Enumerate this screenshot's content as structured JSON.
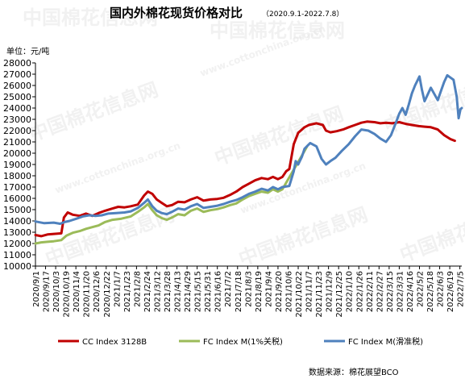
{
  "watermark": {
    "brand": "中国棉花信息网",
    "url": "www.cottonchina.org.cn"
  },
  "chart_data": {
    "type": "line",
    "title": "国内外棉花现货价格对比",
    "subtitle": "（2020.9.1-2022.7.8）",
    "ylabel": "单位：元/吨",
    "ylim": [
      10000,
      28000
    ],
    "yticks": [
      10000,
      11000,
      12000,
      13000,
      14000,
      15000,
      16000,
      17000,
      18000,
      19000,
      20000,
      21000,
      22000,
      23000,
      24000,
      25000,
      26000,
      27000,
      28000
    ],
    "xlim": [
      "2020-09-01",
      "2022-07-08"
    ],
    "categories": [
      "2020/9/1",
      "2020/9/17",
      "2020/10/3",
      "2020/10/19",
      "2020/11/4",
      "2020/11/20",
      "2020/12/6",
      "2020/12/22",
      "2021/1/7",
      "2021/1/23",
      "2021/2/8",
      "2021/2/24",
      "2021/3/12",
      "2021/3/28",
      "2021/4/13",
      "2021/4/29",
      "2021/5/15",
      "2021/5/31",
      "2021/6/16",
      "2021/7/2",
      "2021/7/18",
      "2021/8/3",
      "2021/8/19",
      "2021/9/4",
      "2021/9/20",
      "2021/10/6",
      "2021/10/22",
      "2021/11/7",
      "2021/11/23",
      "2021/12/9",
      "2021/12/25",
      "2022/1/10",
      "2022/1/26",
      "2022/2/11",
      "2022/2/27",
      "2022/3/15",
      "2022/3/31",
      "2022/4/16",
      "2022/5/2",
      "2022/5/18",
      "2022/6/3",
      "2022/6/19",
      "2022/7/5"
    ],
    "grid": false,
    "legend_position": "bottom",
    "source": "数据来源：棉花展望BCO",
    "colors": {
      "cc": "#c00000",
      "fc1": "#9bbb59",
      "fcs": "#4f81bd",
      "axis": "#000000"
    },
    "series": [
      {
        "name": "CC Index 3128B",
        "color": "#c00000",
        "points": [
          [
            "2020-09-01",
            12750
          ],
          [
            "2020-09-10",
            12650
          ],
          [
            "2020-09-20",
            12800
          ],
          [
            "2020-09-30",
            12850
          ],
          [
            "2020-10-12",
            12900
          ],
          [
            "2020-10-16",
            14300
          ],
          [
            "2020-10-22",
            14750
          ],
          [
            "2020-10-30",
            14550
          ],
          [
            "2020-11-10",
            14450
          ],
          [
            "2020-11-20",
            14650
          ],
          [
            "2020-11-30",
            14450
          ],
          [
            "2020-12-10",
            14700
          ],
          [
            "2020-12-20",
            14900
          ],
          [
            "2021-01-01",
            15100
          ],
          [
            "2021-01-10",
            15250
          ],
          [
            "2021-01-20",
            15200
          ],
          [
            "2021-01-30",
            15300
          ],
          [
            "2021-02-10",
            15450
          ],
          [
            "2021-02-20",
            16250
          ],
          [
            "2021-02-26",
            16600
          ],
          [
            "2021-03-05",
            16400
          ],
          [
            "2021-03-12",
            15900
          ],
          [
            "2021-03-20",
            15600
          ],
          [
            "2021-03-28",
            15300
          ],
          [
            "2021-04-05",
            15400
          ],
          [
            "2021-04-15",
            15700
          ],
          [
            "2021-04-25",
            15650
          ],
          [
            "2021-05-05",
            15900
          ],
          [
            "2021-05-15",
            16100
          ],
          [
            "2021-05-25",
            15800
          ],
          [
            "2021-06-05",
            15900
          ],
          [
            "2021-06-16",
            15950
          ],
          [
            "2021-06-26",
            16050
          ],
          [
            "2021-07-06",
            16300
          ],
          [
            "2021-07-16",
            16600
          ],
          [
            "2021-07-26",
            17000
          ],
          [
            "2021-08-05",
            17300
          ],
          [
            "2021-08-15",
            17600
          ],
          [
            "2021-08-25",
            17800
          ],
          [
            "2021-09-04",
            17700
          ],
          [
            "2021-09-12",
            17900
          ],
          [
            "2021-09-20",
            17700
          ],
          [
            "2021-09-27",
            17900
          ],
          [
            "2021-10-03",
            18400
          ],
          [
            "2021-10-08",
            18600
          ],
          [
            "2021-10-15",
            20800
          ],
          [
            "2021-10-22",
            21800
          ],
          [
            "2021-11-01",
            22300
          ],
          [
            "2021-11-08",
            22500
          ],
          [
            "2021-11-20",
            22650
          ],
          [
            "2021-11-30",
            22500
          ],
          [
            "2021-12-05",
            22000
          ],
          [
            "2021-12-12",
            21850
          ],
          [
            "2021-12-22",
            21950
          ],
          [
            "2022-01-01",
            22100
          ],
          [
            "2022-01-10",
            22300
          ],
          [
            "2022-01-20",
            22500
          ],
          [
            "2022-01-30",
            22700
          ],
          [
            "2022-02-08",
            22800
          ],
          [
            "2022-02-20",
            22750
          ],
          [
            "2022-03-01",
            22650
          ],
          [
            "2022-03-10",
            22700
          ],
          [
            "2022-03-20",
            22650
          ],
          [
            "2022-03-31",
            22750
          ],
          [
            "2022-04-10",
            22600
          ],
          [
            "2022-04-20",
            22500
          ],
          [
            "2022-05-01",
            22400
          ],
          [
            "2022-05-10",
            22350
          ],
          [
            "2022-05-20",
            22300
          ],
          [
            "2022-05-31",
            22100
          ],
          [
            "2022-06-10",
            21600
          ],
          [
            "2022-06-20",
            21250
          ],
          [
            "2022-06-27",
            21100
          ]
        ]
      },
      {
        "name": "FC Index M(1%关税)",
        "color": "#9bbb59",
        "points": [
          [
            "2020-09-01",
            12000
          ],
          [
            "2020-09-10",
            12100
          ],
          [
            "2020-09-20",
            12150
          ],
          [
            "2020-09-30",
            12200
          ],
          [
            "2020-10-12",
            12300
          ],
          [
            "2020-10-20",
            12700
          ],
          [
            "2020-10-30",
            12950
          ],
          [
            "2020-11-10",
            13100
          ],
          [
            "2020-11-20",
            13300
          ],
          [
            "2020-11-30",
            13450
          ],
          [
            "2020-12-10",
            13600
          ],
          [
            "2020-12-20",
            13900
          ],
          [
            "2021-01-01",
            14100
          ],
          [
            "2021-01-15",
            14200
          ],
          [
            "2021-01-30",
            14400
          ],
          [
            "2021-02-10",
            14800
          ],
          [
            "2021-02-20",
            15200
          ],
          [
            "2021-02-26",
            15500
          ],
          [
            "2021-03-05",
            14950
          ],
          [
            "2021-03-12",
            14500
          ],
          [
            "2021-03-20",
            14250
          ],
          [
            "2021-03-28",
            14100
          ],
          [
            "2021-04-05",
            14300
          ],
          [
            "2021-04-15",
            14600
          ],
          [
            "2021-04-25",
            14500
          ],
          [
            "2021-05-05",
            14900
          ],
          [
            "2021-05-15",
            15100
          ],
          [
            "2021-05-25",
            14800
          ],
          [
            "2021-06-05",
            14950
          ],
          [
            "2021-06-16",
            15050
          ],
          [
            "2021-06-26",
            15200
          ],
          [
            "2021-07-06",
            15400
          ],
          [
            "2021-07-16",
            15550
          ],
          [
            "2021-07-26",
            15900
          ],
          [
            "2021-08-05",
            16200
          ],
          [
            "2021-08-15",
            16400
          ],
          [
            "2021-08-25",
            16600
          ],
          [
            "2021-09-04",
            16500
          ],
          [
            "2021-09-12",
            16800
          ],
          [
            "2021-09-20",
            16600
          ],
          [
            "2021-09-27",
            16800
          ],
          [
            "2021-11-01",
            20200
          ],
          [
            "2021-11-05",
            20600
          ]
        ]
      },
      {
        "name": "FC Index M(滑准税)",
        "color": "#4f81bd",
        "points": [
          [
            "2020-09-01",
            13950
          ],
          [
            "2020-09-15",
            13800
          ],
          [
            "2020-09-30",
            13850
          ],
          [
            "2020-10-10",
            13750
          ],
          [
            "2020-10-17",
            13900
          ],
          [
            "2020-10-25",
            14000
          ],
          [
            "2020-11-05",
            14200
          ],
          [
            "2020-11-15",
            14400
          ],
          [
            "2020-11-25",
            14500
          ],
          [
            "2020-12-05",
            14450
          ],
          [
            "2020-12-15",
            14500
          ],
          [
            "2020-12-25",
            14650
          ],
          [
            "2021-01-07",
            14700
          ],
          [
            "2021-01-20",
            14750
          ],
          [
            "2021-01-30",
            14850
          ],
          [
            "2021-02-10",
            15150
          ],
          [
            "2021-02-20",
            15600
          ],
          [
            "2021-02-26",
            15900
          ],
          [
            "2021-03-05",
            15300
          ],
          [
            "2021-03-12",
            14900
          ],
          [
            "2021-03-20",
            14700
          ],
          [
            "2021-03-28",
            14600
          ],
          [
            "2021-04-05",
            14800
          ],
          [
            "2021-04-15",
            15100
          ],
          [
            "2021-04-25",
            15000
          ],
          [
            "2021-05-05",
            15300
          ],
          [
            "2021-05-15",
            15500
          ],
          [
            "2021-05-25",
            15150
          ],
          [
            "2021-06-05",
            15250
          ],
          [
            "2021-06-16",
            15350
          ],
          [
            "2021-06-26",
            15500
          ],
          [
            "2021-07-06",
            15700
          ],
          [
            "2021-07-16",
            15850
          ],
          [
            "2021-07-26",
            16100
          ],
          [
            "2021-08-05",
            16400
          ],
          [
            "2021-08-15",
            16600
          ],
          [
            "2021-08-25",
            16850
          ],
          [
            "2021-09-04",
            16700
          ],
          [
            "2021-09-12",
            17000
          ],
          [
            "2021-09-20",
            16800
          ],
          [
            "2021-09-27",
            17000
          ],
          [
            "2021-10-08",
            17100
          ],
          [
            "2021-10-15",
            18400
          ],
          [
            "2021-10-18",
            19300
          ],
          [
            "2021-10-22",
            19000
          ],
          [
            "2021-10-28",
            19700
          ],
          [
            "2021-11-01",
            20400
          ],
          [
            "2021-11-10",
            20900
          ],
          [
            "2021-11-20",
            20600
          ],
          [
            "2021-11-28",
            19500
          ],
          [
            "2021-12-05",
            19000
          ],
          [
            "2021-12-12",
            19300
          ],
          [
            "2021-12-20",
            19600
          ],
          [
            "2021-12-30",
            20200
          ],
          [
            "2022-01-10",
            20800
          ],
          [
            "2022-01-20",
            21500
          ],
          [
            "2022-01-30",
            22100
          ],
          [
            "2022-02-10",
            22000
          ],
          [
            "2022-02-20",
            21700
          ],
          [
            "2022-03-01",
            21300
          ],
          [
            "2022-03-10",
            21000
          ],
          [
            "2022-03-18",
            21600
          ],
          [
            "2022-03-25",
            22600
          ],
          [
            "2022-03-31",
            23500
          ],
          [
            "2022-04-05",
            24000
          ],
          [
            "2022-04-10",
            23400
          ],
          [
            "2022-04-15",
            24300
          ],
          [
            "2022-04-20",
            25300
          ],
          [
            "2022-04-25",
            26000
          ],
          [
            "2022-05-02",
            26800
          ],
          [
            "2022-05-06",
            25600
          ],
          [
            "2022-05-10",
            24600
          ],
          [
            "2022-05-15",
            25200
          ],
          [
            "2022-05-20",
            25800
          ],
          [
            "2022-05-25",
            25300
          ],
          [
            "2022-05-31",
            24700
          ],
          [
            "2022-06-05",
            25500
          ],
          [
            "2022-06-10",
            26300
          ],
          [
            "2022-06-15",
            26900
          ],
          [
            "2022-06-20",
            26700
          ],
          [
            "2022-06-25",
            26500
          ],
          [
            "2022-06-30",
            25000
          ],
          [
            "2022-07-03",
            23100
          ],
          [
            "2022-07-06",
            23900
          ],
          [
            "2022-07-08",
            24000
          ]
        ]
      }
    ]
  }
}
